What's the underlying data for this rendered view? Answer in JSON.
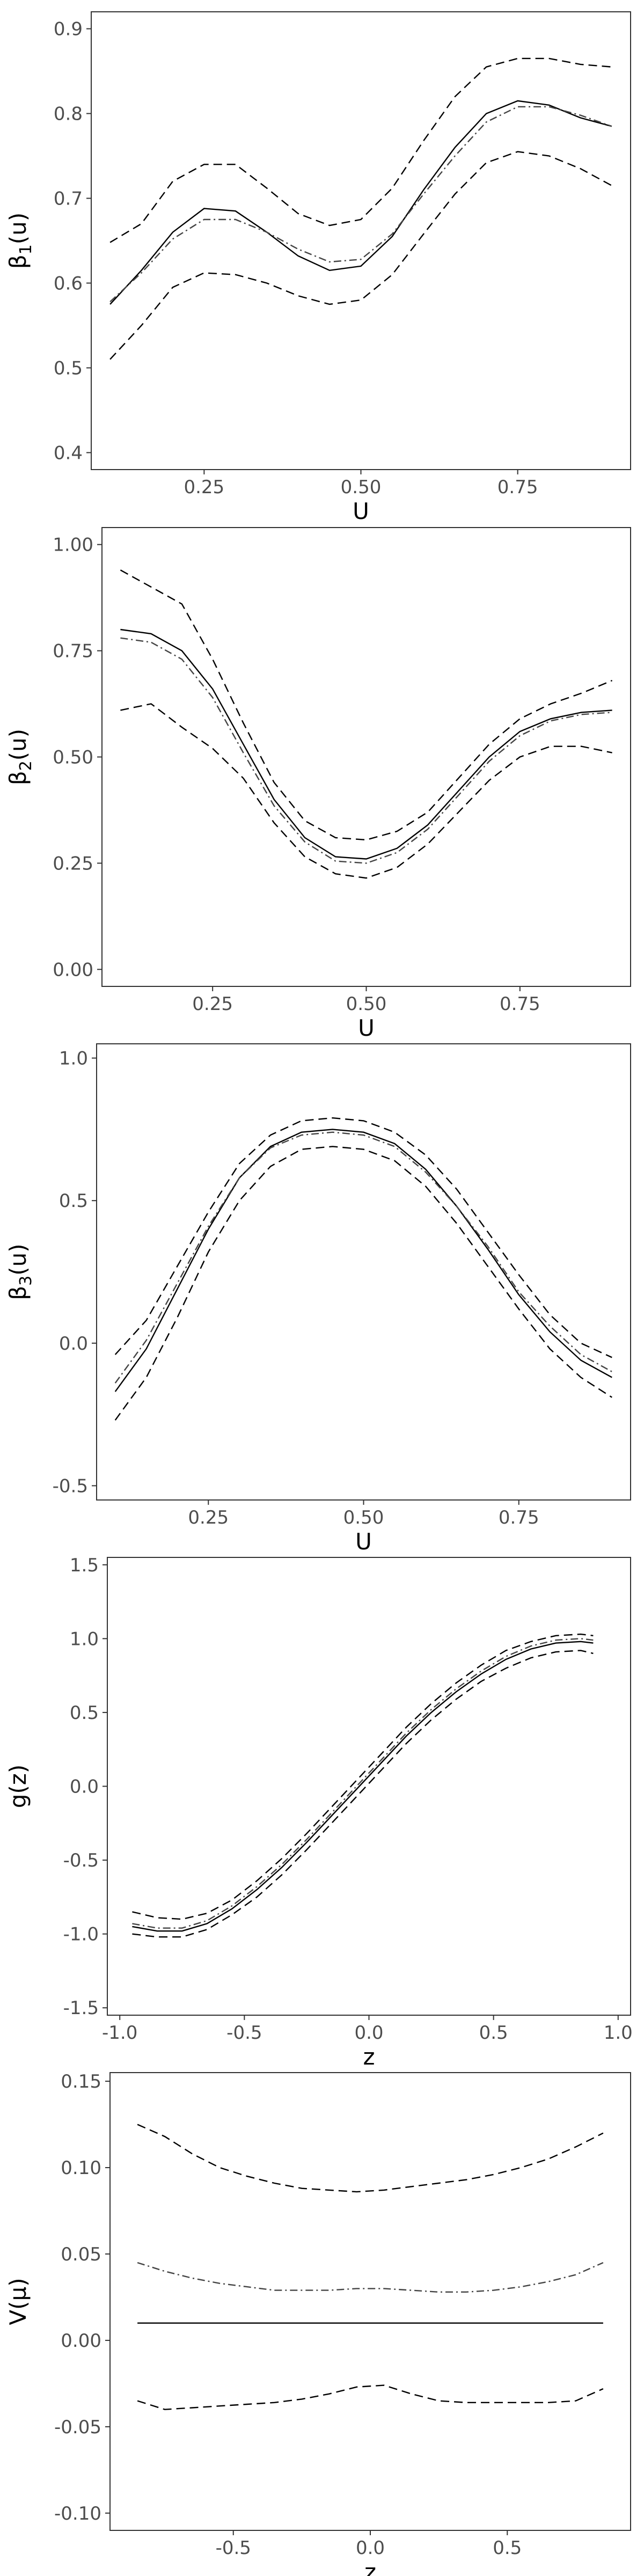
{
  "chart_data": [
    {
      "type": "line",
      "xlabel": "U",
      "ylabel_base": "β",
      "ylabel_sub": "1",
      "ylabel_suffix": "(u)",
      "xlim": [
        0.07,
        0.93
      ],
      "ylim": [
        0.38,
        0.92
      ],
      "xticks": [
        0.25,
        0.5,
        0.75
      ],
      "xtick_labels": [
        "0.25",
        "0.50",
        "0.75"
      ],
      "yticks": [
        0.4,
        0.5,
        0.6,
        0.7,
        0.8,
        0.9
      ],
      "ytick_labels": [
        "0.4",
        "0.5",
        "0.6",
        "0.7",
        "0.8",
        "0.9"
      ],
      "series": [
        {
          "style": "solid",
          "x": [
            0.1,
            0.15,
            0.2,
            0.25,
            0.3,
            0.35,
            0.4,
            0.45,
            0.5,
            0.55,
            0.6,
            0.65,
            0.7,
            0.75,
            0.8,
            0.85,
            0.9
          ],
          "y": [
            0.575,
            0.615,
            0.66,
            0.688,
            0.685,
            0.66,
            0.632,
            0.615,
            0.62,
            0.655,
            0.71,
            0.76,
            0.8,
            0.815,
            0.81,
            0.795,
            0.785
          ]
        },
        {
          "style": "dotdash",
          "x": [
            0.1,
            0.15,
            0.2,
            0.25,
            0.3,
            0.35,
            0.4,
            0.45,
            0.5,
            0.55,
            0.6,
            0.65,
            0.7,
            0.75,
            0.8,
            0.85,
            0.9
          ],
          "y": [
            0.578,
            0.612,
            0.652,
            0.675,
            0.675,
            0.66,
            0.64,
            0.625,
            0.628,
            0.658,
            0.705,
            0.75,
            0.79,
            0.808,
            0.808,
            0.798,
            0.785
          ]
        },
        {
          "style": "dashed",
          "x": [
            0.1,
            0.15,
            0.2,
            0.25,
            0.3,
            0.35,
            0.4,
            0.45,
            0.5,
            0.55,
            0.6,
            0.65,
            0.7,
            0.75,
            0.8,
            0.85,
            0.9
          ],
          "y": [
            0.648,
            0.67,
            0.72,
            0.74,
            0.74,
            0.712,
            0.682,
            0.668,
            0.675,
            0.712,
            0.768,
            0.82,
            0.855,
            0.865,
            0.865,
            0.858,
            0.855
          ]
        },
        {
          "style": "dashed",
          "x": [
            0.1,
            0.15,
            0.2,
            0.25,
            0.3,
            0.35,
            0.4,
            0.45,
            0.5,
            0.55,
            0.6,
            0.65,
            0.7,
            0.75,
            0.8,
            0.85,
            0.9
          ],
          "y": [
            0.51,
            0.55,
            0.595,
            0.612,
            0.61,
            0.6,
            0.585,
            0.575,
            0.58,
            0.61,
            0.658,
            0.705,
            0.742,
            0.755,
            0.75,
            0.735,
            0.715
          ]
        }
      ]
    },
    {
      "type": "line",
      "xlabel": "U",
      "ylabel_base": "β",
      "ylabel_sub": "2",
      "ylabel_suffix": "(u)",
      "xlim": [
        0.07,
        0.93
      ],
      "ylim": [
        -0.04,
        1.04
      ],
      "xticks": [
        0.25,
        0.5,
        0.75
      ],
      "xtick_labels": [
        "0.25",
        "0.50",
        "0.75"
      ],
      "yticks": [
        0,
        0.25,
        0.5,
        0.75,
        1
      ],
      "ytick_labels": [
        "0.00",
        "0.25",
        "0.50",
        "0.75",
        "1.00"
      ],
      "series": [
        {
          "style": "solid",
          "x": [
            0.1,
            0.15,
            0.2,
            0.25,
            0.3,
            0.35,
            0.4,
            0.45,
            0.5,
            0.55,
            0.6,
            0.65,
            0.7,
            0.75,
            0.8,
            0.85,
            0.9
          ],
          "y": [
            0.8,
            0.79,
            0.75,
            0.66,
            0.53,
            0.4,
            0.31,
            0.265,
            0.26,
            0.285,
            0.34,
            0.42,
            0.5,
            0.56,
            0.59,
            0.605,
            0.61
          ]
        },
        {
          "style": "dotdash",
          "x": [
            0.1,
            0.15,
            0.2,
            0.25,
            0.3,
            0.35,
            0.4,
            0.45,
            0.5,
            0.55,
            0.6,
            0.65,
            0.7,
            0.75,
            0.8,
            0.85,
            0.9
          ],
          "y": [
            0.78,
            0.77,
            0.73,
            0.64,
            0.51,
            0.385,
            0.3,
            0.255,
            0.25,
            0.275,
            0.33,
            0.41,
            0.49,
            0.55,
            0.585,
            0.6,
            0.605
          ]
        },
        {
          "style": "dashed",
          "x": [
            0.1,
            0.15,
            0.2,
            0.25,
            0.3,
            0.35,
            0.4,
            0.45,
            0.5,
            0.55,
            0.6,
            0.65,
            0.7,
            0.75,
            0.8,
            0.85,
            0.9
          ],
          "y": [
            0.94,
            0.9,
            0.86,
            0.73,
            0.58,
            0.44,
            0.35,
            0.31,
            0.305,
            0.325,
            0.37,
            0.45,
            0.53,
            0.59,
            0.625,
            0.65,
            0.68
          ]
        },
        {
          "style": "dashed",
          "x": [
            0.1,
            0.15,
            0.2,
            0.25,
            0.3,
            0.35,
            0.4,
            0.45,
            0.5,
            0.55,
            0.6,
            0.65,
            0.7,
            0.75,
            0.8,
            0.85,
            0.9
          ],
          "y": [
            0.61,
            0.625,
            0.57,
            0.52,
            0.45,
            0.345,
            0.265,
            0.225,
            0.215,
            0.24,
            0.295,
            0.37,
            0.445,
            0.5,
            0.525,
            0.525,
            0.51
          ]
        }
      ]
    },
    {
      "type": "line",
      "xlabel": "U",
      "ylabel_base": "β",
      "ylabel_sub": "3",
      "ylabel_suffix": "(u)",
      "xlim": [
        0.07,
        0.93
      ],
      "ylim": [
        -0.55,
        1.05
      ],
      "xticks": [
        0.25,
        0.5,
        0.75
      ],
      "xtick_labels": [
        "0.25",
        "0.50",
        "0.75"
      ],
      "yticks": [
        -0.5,
        0,
        0.5,
        1
      ],
      "ytick_labels": [
        "-0.5",
        "0.0",
        "0.5",
        "1.0"
      ],
      "series": [
        {
          "style": "solid",
          "x": [
            0.1,
            0.15,
            0.2,
            0.25,
            0.3,
            0.35,
            0.4,
            0.45,
            0.5,
            0.55,
            0.6,
            0.65,
            0.7,
            0.75,
            0.8,
            0.85,
            0.9
          ],
          "y": [
            -0.17,
            -0.02,
            0.19,
            0.4,
            0.58,
            0.69,
            0.74,
            0.75,
            0.74,
            0.7,
            0.61,
            0.48,
            0.33,
            0.17,
            0.04,
            -0.06,
            -0.12
          ]
        },
        {
          "style": "dotdash",
          "x": [
            0.1,
            0.15,
            0.2,
            0.25,
            0.3,
            0.35,
            0.4,
            0.45,
            0.5,
            0.55,
            0.6,
            0.65,
            0.7,
            0.75,
            0.8,
            0.85,
            0.9
          ],
          "y": [
            -0.14,
            0.01,
            0.21,
            0.41,
            0.58,
            0.685,
            0.73,
            0.74,
            0.73,
            0.69,
            0.6,
            0.48,
            0.34,
            0.18,
            0.06,
            -0.04,
            -0.1
          ]
        },
        {
          "style": "dashed",
          "x": [
            0.1,
            0.15,
            0.2,
            0.25,
            0.3,
            0.35,
            0.4,
            0.45,
            0.5,
            0.55,
            0.6,
            0.65,
            0.7,
            0.75,
            0.8,
            0.85,
            0.9
          ],
          "y": [
            -0.04,
            0.08,
            0.27,
            0.46,
            0.63,
            0.73,
            0.78,
            0.79,
            0.78,
            0.74,
            0.66,
            0.54,
            0.39,
            0.24,
            0.1,
            0.0,
            -0.05
          ]
        },
        {
          "style": "dashed",
          "x": [
            0.1,
            0.15,
            0.2,
            0.25,
            0.3,
            0.35,
            0.4,
            0.45,
            0.5,
            0.55,
            0.6,
            0.65,
            0.7,
            0.75,
            0.8,
            0.85,
            0.9
          ],
          "y": [
            -0.27,
            -0.12,
            0.09,
            0.32,
            0.5,
            0.62,
            0.68,
            0.69,
            0.68,
            0.64,
            0.55,
            0.42,
            0.27,
            0.12,
            -0.02,
            -0.12,
            -0.19
          ]
        }
      ]
    },
    {
      "type": "line",
      "xlabel": "z",
      "ylabel_base": "g(z)",
      "ylabel_sub": "",
      "ylabel_suffix": "",
      "xlim": [
        -1.05,
        1.05
      ],
      "ylim": [
        -1.55,
        1.55
      ],
      "xticks": [
        -1,
        -0.5,
        0,
        0.5,
        1
      ],
      "xtick_labels": [
        "-1.0",
        "-0.5",
        "0.0",
        "0.5",
        "1.0"
      ],
      "yticks": [
        -1.5,
        -1,
        -0.5,
        0,
        0.5,
        1,
        1.5
      ],
      "ytick_labels": [
        "-1.5",
        "-1.0",
        "-0.5",
        "0.0",
        "0.5",
        "1.0",
        "1.5"
      ],
      "series": [
        {
          "style": "solid",
          "x": [
            -0.95,
            -0.85,
            -0.75,
            -0.65,
            -0.55,
            -0.45,
            -0.35,
            -0.25,
            -0.15,
            -0.05,
            0.05,
            0.15,
            0.25,
            0.35,
            0.45,
            0.55,
            0.65,
            0.75,
            0.85,
            0.9
          ],
          "y": [
            -0.95,
            -0.98,
            -0.98,
            -0.93,
            -0.83,
            -0.7,
            -0.55,
            -0.38,
            -0.2,
            -0.02,
            0.16,
            0.34,
            0.5,
            0.64,
            0.76,
            0.86,
            0.93,
            0.97,
            0.98,
            0.97
          ]
        },
        {
          "style": "dotdash",
          "x": [
            -0.95,
            -0.85,
            -0.75,
            -0.65,
            -0.55,
            -0.45,
            -0.35,
            -0.25,
            -0.15,
            -0.05,
            0.05,
            0.15,
            0.25,
            0.35,
            0.45,
            0.55,
            0.65,
            0.75,
            0.85,
            0.9
          ],
          "y": [
            -0.93,
            -0.96,
            -0.96,
            -0.91,
            -0.81,
            -0.68,
            -0.53,
            -0.36,
            -0.18,
            0.0,
            0.18,
            0.36,
            0.52,
            0.66,
            0.78,
            0.88,
            0.95,
            0.99,
            1.0,
            0.99
          ]
        },
        {
          "style": "dashed",
          "x": [
            -0.95,
            -0.85,
            -0.75,
            -0.65,
            -0.55,
            -0.45,
            -0.35,
            -0.25,
            -0.15,
            -0.05,
            0.05,
            0.15,
            0.25,
            0.35,
            0.45,
            0.55,
            0.65,
            0.75,
            0.85,
            0.9
          ],
          "y": [
            -0.85,
            -0.89,
            -0.9,
            -0.86,
            -0.77,
            -0.64,
            -0.49,
            -0.32,
            -0.14,
            0.04,
            0.22,
            0.4,
            0.56,
            0.7,
            0.82,
            0.92,
            0.98,
            1.02,
            1.03,
            1.02
          ]
        },
        {
          "style": "dashed",
          "x": [
            -0.95,
            -0.85,
            -0.75,
            -0.65,
            -0.55,
            -0.45,
            -0.35,
            -0.25,
            -0.15,
            -0.05,
            0.05,
            0.15,
            0.25,
            0.35,
            0.45,
            0.55,
            0.65,
            0.75,
            0.85,
            0.9
          ],
          "y": [
            -1.0,
            -1.02,
            -1.02,
            -0.97,
            -0.87,
            -0.75,
            -0.6,
            -0.43,
            -0.25,
            -0.07,
            0.11,
            0.29,
            0.45,
            0.59,
            0.71,
            0.8,
            0.87,
            0.91,
            0.92,
            0.9
          ]
        }
      ]
    },
    {
      "type": "line",
      "xlabel": "z",
      "ylabel_base": "V(μ)",
      "ylabel_sub": "",
      "ylabel_suffix": "",
      "xlim": [
        -0.95,
        0.95
      ],
      "ylim": [
        -0.11,
        0.155
      ],
      "xticks": [
        -0.5,
        0,
        0.5
      ],
      "xtick_labels": [
        "-0.5",
        "0.0",
        "0.5"
      ],
      "yticks": [
        -0.1,
        -0.05,
        0,
        0.05,
        0.1,
        0.15
      ],
      "ytick_labels": [
        "-0.10",
        "-0.05",
        "0.00",
        "0.05",
        "0.10",
        "0.15"
      ],
      "series": [
        {
          "style": "solid",
          "x": [
            -0.85,
            0.85
          ],
          "y": [
            0.01,
            0.01
          ]
        },
        {
          "style": "dotdash",
          "x": [
            -0.85,
            -0.75,
            -0.65,
            -0.55,
            -0.45,
            -0.35,
            -0.25,
            -0.15,
            -0.05,
            0.05,
            0.15,
            0.25,
            0.35,
            0.45,
            0.55,
            0.65,
            0.75,
            0.85
          ],
          "y": [
            0.045,
            0.04,
            0.036,
            0.033,
            0.031,
            0.029,
            0.029,
            0.029,
            0.03,
            0.03,
            0.029,
            0.028,
            0.028,
            0.029,
            0.031,
            0.034,
            0.038,
            0.045
          ]
        },
        {
          "style": "dashed",
          "x": [
            -0.85,
            -0.75,
            -0.65,
            -0.55,
            -0.45,
            -0.35,
            -0.25,
            -0.15,
            -0.05,
            0.05,
            0.15,
            0.25,
            0.35,
            0.45,
            0.55,
            0.65,
            0.75,
            0.85
          ],
          "y": [
            0.125,
            0.118,
            0.108,
            0.1,
            0.095,
            0.091,
            0.088,
            0.087,
            0.086,
            0.087,
            0.089,
            0.091,
            0.093,
            0.096,
            0.1,
            0.105,
            0.112,
            0.12
          ]
        },
        {
          "style": "dashed",
          "x": [
            -0.85,
            -0.75,
            -0.65,
            -0.55,
            -0.45,
            -0.35,
            -0.25,
            -0.15,
            -0.05,
            0.05,
            0.15,
            0.25,
            0.35,
            0.45,
            0.55,
            0.65,
            0.75,
            0.85
          ],
          "y": [
            -0.035,
            -0.04,
            -0.039,
            -0.038,
            -0.037,
            -0.036,
            -0.034,
            -0.031,
            -0.027,
            -0.026,
            -0.031,
            -0.035,
            -0.036,
            -0.036,
            -0.036,
            -0.036,
            -0.035,
            -0.028
          ]
        }
      ]
    }
  ]
}
